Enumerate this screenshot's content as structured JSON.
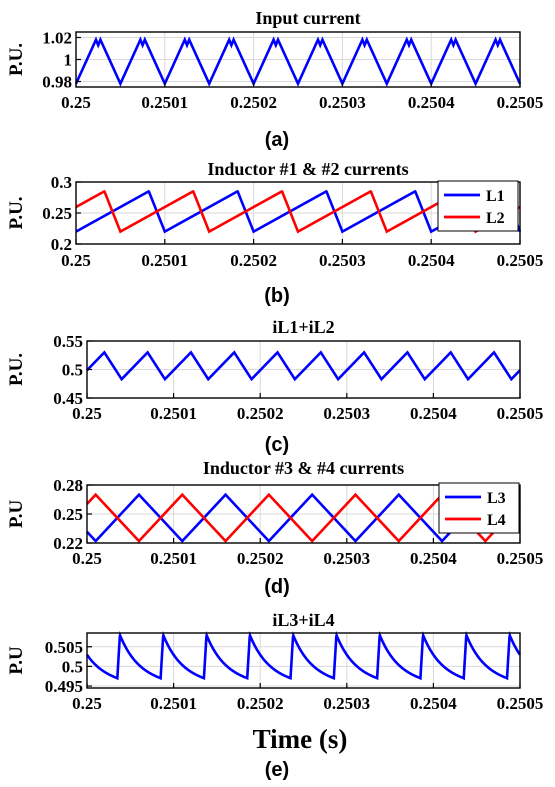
{
  "colors": {
    "blue": "#0000ff",
    "red": "#ff0000",
    "grid": "#d9d9d9",
    "axis": "#000000"
  },
  "xlabel": "Time (s)",
  "chart_data": [
    {
      "type": "line",
      "title": "Input current",
      "ylabel": "P.U.",
      "caption": "(a)",
      "xlim": [
        0.25,
        0.2505
      ],
      "ylim": [
        0.975,
        1.025
      ],
      "xticks": [
        "0.25",
        "0.2501",
        "0.2502",
        "0.2503",
        "0.2504",
        "0.2505"
      ],
      "xtick_values": [
        0.25,
        0.2501,
        0.2502,
        0.2503,
        0.2504,
        0.2505
      ],
      "yticks": [
        "0.98",
        "1",
        "1.02"
      ],
      "ytick_values": [
        0.98,
        1.0,
        1.02
      ],
      "grid": true,
      "legend": [],
      "series": [
        {
          "color": "#0000ff",
          "shape": "ripple",
          "period": 5e-05,
          "phase": 0.0,
          "min": 0.978,
          "max": 1.018,
          "cusp": 1.013
        }
      ]
    },
    {
      "type": "line",
      "title": "Inductor #1 & #2 currents",
      "ylabel": "P.U.",
      "caption": "(b)",
      "xlim": [
        0.25,
        0.2505
      ],
      "ylim": [
        0.2,
        0.3
      ],
      "xticks": [
        "0.25",
        "0.2501",
        "0.2502",
        "0.2503",
        "0.2504",
        "0.2505"
      ],
      "xtick_values": [
        0.25,
        0.2501,
        0.2502,
        0.2503,
        0.2504,
        0.2505
      ],
      "yticks": [
        "0.2",
        "0.25",
        "0.3"
      ],
      "ytick_values": [
        0.2,
        0.25,
        0.3
      ],
      "grid": true,
      "legend": [
        "L1",
        "L2"
      ],
      "series": [
        {
          "name": "L1",
          "color": "#0000ff",
          "shape": "sawtooth",
          "period": 0.0001,
          "phase": 0.0,
          "min": 0.22,
          "max": 0.285,
          "peak_frac": 0.82
        },
        {
          "name": "L2",
          "color": "#ff0000",
          "shape": "sawtooth",
          "period": 0.0001,
          "phase": 5e-05,
          "min": 0.22,
          "max": 0.285,
          "peak_frac": 0.82
        }
      ]
    },
    {
      "type": "line",
      "title": "iL1+iL2",
      "ylabel": "P.U.",
      "caption": "(c)",
      "xlim": [
        0.25,
        0.2505
      ],
      "ylim": [
        0.45,
        0.55
      ],
      "xticks": [
        "0.25",
        "0.2501",
        "0.2502",
        "0.2503",
        "0.2504",
        "0.2505"
      ],
      "xtick_values": [
        0.25,
        0.2501,
        0.2502,
        0.2503,
        0.2504,
        0.2505
      ],
      "yticks": [
        "0.45",
        "0.5",
        "0.55"
      ],
      "ytick_values": [
        0.45,
        0.5,
        0.55
      ],
      "grid": true,
      "legend": [],
      "series": [
        {
          "color": "#0000ff",
          "shape": "triangle",
          "period": 5e-05,
          "phase": 0.0,
          "min": 0.483,
          "max": 0.53,
          "peak_frac": 0.6,
          "start_frac": 0.2
        }
      ]
    },
    {
      "type": "line",
      "title": "Inductor #3 & #4 currents",
      "ylabel": "P.U",
      "caption": "(d)",
      "xlim": [
        0.25,
        0.2505
      ],
      "ylim": [
        0.22,
        0.28
      ],
      "xticks": [
        "0.25",
        "0.2501",
        "0.2502",
        "0.2503",
        "0.2504",
        "0.2505"
      ],
      "xtick_values": [
        0.25,
        0.2501,
        0.2502,
        0.2503,
        0.2504,
        0.2505
      ],
      "yticks": [
        "0.22",
        "0.25",
        "0.28"
      ],
      "ytick_values": [
        0.22,
        0.25,
        0.28
      ],
      "grid": true,
      "legend": [
        "L3",
        "L4"
      ],
      "series": [
        {
          "name": "L3",
          "color": "#0000ff",
          "shape": "triangle",
          "period": 0.0001,
          "phase": 0.0,
          "min": 0.222,
          "max": 0.27,
          "peak_frac": 0.5,
          "start_frac": 0.9
        },
        {
          "name": "L4",
          "color": "#ff0000",
          "shape": "triangle",
          "period": 0.0001,
          "phase": 0.0,
          "min": 0.222,
          "max": 0.27,
          "peak_frac": 0.5,
          "start_frac": 0.4
        }
      ]
    },
    {
      "type": "line",
      "title": "iL3+iL4",
      "ylabel": "P.U",
      "caption": "(e)",
      "xlim": [
        0.25,
        0.2505
      ],
      "ylim": [
        0.4945,
        0.5085
      ],
      "xticks": [
        "0.25",
        "0.2501",
        "0.2502",
        "0.2503",
        "0.2504",
        "0.2505"
      ],
      "xtick_values": [
        0.25,
        0.2501,
        0.2502,
        0.2503,
        0.2504,
        0.2505
      ],
      "yticks": [
        "0.495",
        "0.5",
        "0.505"
      ],
      "ytick_values": [
        0.495,
        0.5,
        0.505
      ],
      "grid": true,
      "legend": [],
      "series": [
        {
          "color": "#0000ff",
          "shape": "decay",
          "period": 5e-05,
          "phase": 3.5e-05,
          "min": 0.497,
          "max": 0.508,
          "rise_frac": 0.06
        }
      ]
    }
  ]
}
